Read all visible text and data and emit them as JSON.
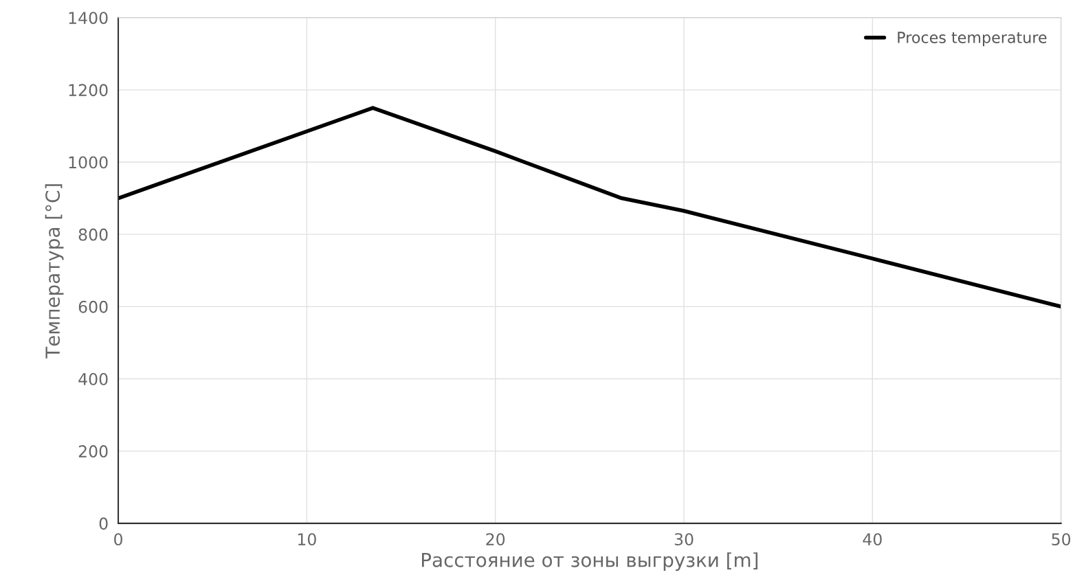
{
  "chart_data": {
    "type": "line",
    "xlabel": "Расстояние от зоны выгрузки [m]",
    "ylabel": "Температура [°C]",
    "x": [
      0,
      13.5,
      20,
      26.7,
      30,
      40,
      50
    ],
    "series": [
      {
        "name": "Proces temperature",
        "color": "#000000",
        "values": [
          900,
          1150,
          1030,
          900,
          865,
          733,
          600
        ]
      }
    ],
    "xlim": [
      0,
      50
    ],
    "xticks": [
      0,
      10,
      20,
      30,
      40,
      50
    ],
    "ylim": [
      0,
      1400
    ],
    "yticks": [
      0,
      200,
      400,
      600,
      800,
      1000,
      1200,
      1400
    ],
    "grid": true,
    "legend": "top right",
    "marker": "none",
    "line_style": "solid"
  }
}
